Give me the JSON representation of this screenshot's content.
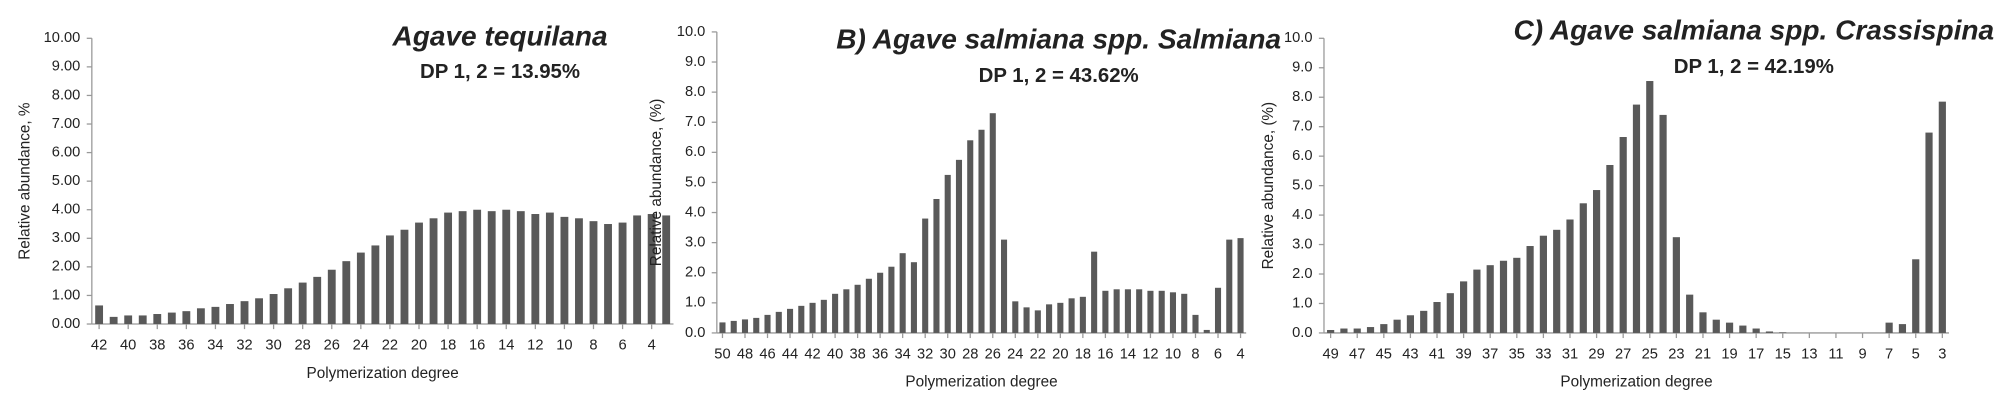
{
  "chart_data": [
    {
      "type": "bar",
      "title": "Agave tequilana",
      "subtitle": "DP 1, 2 = 13.95%",
      "x_label": "Polymerization degree",
      "y_label": "Relative abundance, %",
      "categories": [
        "42",
        null,
        "40",
        null,
        "38",
        null,
        "36",
        null,
        "34",
        null,
        "32",
        null,
        "30",
        null,
        "28",
        null,
        "26",
        null,
        "24",
        null,
        "22",
        null,
        "20",
        null,
        "18",
        null,
        "16",
        null,
        "14",
        null,
        "12",
        null,
        "10",
        null,
        "8",
        null,
        "6",
        null,
        "4",
        null
      ],
      "values": [
        0.65,
        0.25,
        0.3,
        0.3,
        0.35,
        0.4,
        0.45,
        0.55,
        0.6,
        0.7,
        0.8,
        0.9,
        1.05,
        1.25,
        1.45,
        1.65,
        1.9,
        2.2,
        2.5,
        2.75,
        3.1,
        3.3,
        3.55,
        3.7,
        3.9,
        3.95,
        4.0,
        3.95,
        4.0,
        3.95,
        3.85,
        3.9,
        3.75,
        3.7,
        3.6,
        3.5,
        3.55,
        3.8,
        3.85,
        3.8
      ],
      "color": "#595959",
      "ylim": [
        0,
        10
      ],
      "yticks": [
        {
          "value": 0,
          "label": "0.00"
        },
        {
          "value": 1,
          "label": "1.00"
        },
        {
          "value": 2,
          "label": "2.00"
        },
        {
          "value": 3,
          "label": "3.00"
        },
        {
          "value": 4,
          "label": "4.00"
        },
        {
          "value": 5,
          "label": "5.00"
        },
        {
          "value": 6,
          "label": "6.00"
        },
        {
          "value": 7,
          "label": "7.00"
        },
        {
          "value": 8,
          "label": "8.00"
        },
        {
          "value": 9,
          "label": "9.00"
        },
        {
          "value": 10,
          "label": "10.00"
        }
      ]
    },
    {
      "type": "bar",
      "title": "B) Agave salmiana spp. Salmiana",
      "subtitle": "DP 1, 2 = 43.62%",
      "x_label": "Polymerization degree",
      "y_label": "Relative abundance, (%)",
      "categories": [
        "50",
        null,
        "48",
        null,
        "46",
        null,
        "44",
        null,
        "42",
        null,
        "40",
        null,
        "38",
        null,
        "36",
        null,
        "34",
        null,
        "32",
        null,
        "30",
        null,
        "28",
        null,
        "26",
        null,
        "24",
        null,
        "22",
        null,
        "20",
        null,
        "18",
        null,
        "16",
        null,
        "14",
        null,
        "12",
        null,
        "10",
        null,
        "8",
        null,
        "6",
        null,
        "4"
      ],
      "values": [
        0.35,
        0.4,
        0.45,
        0.5,
        0.6,
        0.7,
        0.8,
        0.9,
        1.0,
        1.1,
        1.3,
        1.45,
        1.6,
        1.8,
        2.0,
        2.2,
        2.65,
        2.35,
        3.8,
        4.45,
        5.25,
        5.75,
        6.4,
        6.75,
        7.3,
        3.1,
        1.05,
        0.85,
        0.75,
        0.95,
        1.0,
        1.15,
        1.2,
        2.7,
        1.4,
        1.45,
        1.45,
        1.45,
        1.4,
        1.4,
        1.35,
        1.3,
        0.6,
        0.1,
        1.5,
        3.1,
        3.15
      ],
      "color": "#595959",
      "ylim": [
        0,
        10
      ],
      "yticks": [
        {
          "value": 0,
          "label": "0.0"
        },
        {
          "value": 1,
          "label": "1.0"
        },
        {
          "value": 2,
          "label": "2.0"
        },
        {
          "value": 3,
          "label": "3.0"
        },
        {
          "value": 4,
          "label": "4.0"
        },
        {
          "value": 5,
          "label": "5.0"
        },
        {
          "value": 6,
          "label": "6.0"
        },
        {
          "value": 7,
          "label": "7.0"
        },
        {
          "value": 8,
          "label": "8.0"
        },
        {
          "value": 9,
          "label": "9.0"
        },
        {
          "value": 10,
          "label": "10.0"
        }
      ]
    },
    {
      "type": "bar",
      "title": "C) Agave salmiana spp. Crassispina",
      "subtitle": "DP 1, 2 = 42.19%",
      "x_label": "Polymerization degree",
      "y_label": "Relative abundance, (%)",
      "categories": [
        "49",
        null,
        "47",
        null,
        "45",
        null,
        "43",
        null,
        "41",
        null,
        "39",
        null,
        "37",
        null,
        "35",
        null,
        "33",
        null,
        "31",
        null,
        "29",
        null,
        "27",
        null,
        "25",
        null,
        "23",
        null,
        "21",
        null,
        "19",
        null,
        "17",
        null,
        "15",
        null,
        "13",
        null,
        "11",
        null,
        "9",
        null,
        "7",
        null,
        "5",
        null,
        "3"
      ],
      "values": [
        0.1,
        0.15,
        0.15,
        0.2,
        0.3,
        0.45,
        0.6,
        0.75,
        1.05,
        1.35,
        1.75,
        2.15,
        2.3,
        2.45,
        2.55,
        2.95,
        3.3,
        3.5,
        3.85,
        4.4,
        4.85,
        5.7,
        6.65,
        7.75,
        8.55,
        7.4,
        3.25,
        1.3,
        0.7,
        0.45,
        0.35,
        0.25,
        0.15,
        0.05,
        0.02,
        0,
        0,
        0,
        0,
        0,
        0,
        0,
        0.35,
        0.3,
        2.5,
        6.8,
        7.85
      ],
      "color": "#595959",
      "ylim": [
        0,
        10
      ],
      "yticks": [
        {
          "value": 0,
          "label": "0.0"
        },
        {
          "value": 1,
          "label": "1.0"
        },
        {
          "value": 2,
          "label": "2.0"
        },
        {
          "value": 3,
          "label": "3.0"
        },
        {
          "value": 4,
          "label": "4.0"
        },
        {
          "value": 5,
          "label": "5.0"
        },
        {
          "value": 6,
          "label": "6.0"
        },
        {
          "value": 7,
          "label": "7.0"
        },
        {
          "value": 8,
          "label": "8.0"
        },
        {
          "value": 9,
          "label": "9.0"
        },
        {
          "value": 10,
          "label": "10.0"
        }
      ]
    }
  ]
}
